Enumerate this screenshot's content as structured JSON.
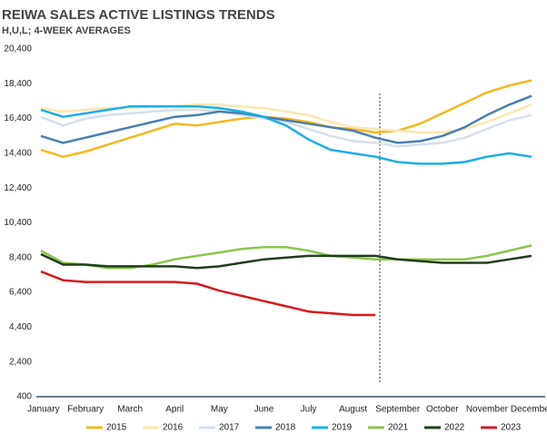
{
  "chart_data": {
    "type": "line",
    "title": "REIWA SALES ACTIVE LISTINGS TRENDS",
    "subtitle": "H,U,L; 4-WEEK AVERAGES",
    "categories": [
      "January",
      null,
      "February",
      null,
      "March",
      null,
      "April",
      null,
      "May",
      null,
      "June",
      null,
      "July",
      null,
      "August",
      null,
      "September",
      null,
      "October",
      null,
      "November",
      null,
      "December"
    ],
    "ylim": [
      400,
      20400
    ],
    "yticks": [
      {
        "value": 400,
        "label": "400"
      },
      {
        "value": 2400,
        "label": "2,400"
      },
      {
        "value": 4400,
        "label": "4,400"
      },
      {
        "value": 6400,
        "label": "6,400"
      },
      {
        "value": 8400,
        "label": "8,400"
      },
      {
        "value": 10400,
        "label": "10,400"
      },
      {
        "value": 12400,
        "label": "12,400"
      },
      {
        "value": 14400,
        "label": "14,400"
      },
      {
        "value": 16400,
        "label": "16,400"
      },
      {
        "value": 18400,
        "label": "18,400"
      },
      {
        "value": 20400,
        "label": "20,400"
      }
    ],
    "series": [
      {
        "name": "2015",
        "color": "#f5b820",
        "values": [
          14600,
          14200,
          14500,
          14900,
          15300,
          15700,
          16100,
          16000,
          16200,
          16400,
          16500,
          16400,
          16200,
          15900,
          15800,
          15600,
          15700,
          16100,
          16700,
          17300,
          17900,
          18300,
          18600
        ]
      },
      {
        "name": "2016",
        "color": "#fbe7b0",
        "values": [
          17000,
          16800,
          16900,
          17000,
          17000,
          17100,
          17100,
          17200,
          17200,
          17100,
          17000,
          16800,
          16600,
          16200,
          15900,
          15800,
          15700,
          15600,
          15600,
          15800,
          16200,
          16700,
          17200
        ]
      },
      {
        "name": "2017",
        "color": "#d6dfec",
        "values": [
          16500,
          16000,
          16400,
          16600,
          16700,
          16800,
          16900,
          16900,
          16800,
          16600,
          16400,
          16200,
          15800,
          15400,
          15100,
          15000,
          14800,
          14900,
          15000,
          15300,
          15800,
          16300,
          16600
        ]
      },
      {
        "name": "2018",
        "color": "#4a7fb0",
        "values": [
          15400,
          15000,
          15300,
          15600,
          15900,
          16200,
          16500,
          16600,
          16800,
          16700,
          16500,
          16300,
          16100,
          15900,
          15700,
          15300,
          15000,
          15100,
          15400,
          15900,
          16600,
          17200,
          17700
        ]
      },
      {
        "name": "2019",
        "color": "#1aaee5",
        "values": [
          16900,
          16500,
          16700,
          16900,
          17100,
          17100,
          17100,
          17100,
          17000,
          16800,
          16500,
          16000,
          15200,
          14600,
          14400,
          14200,
          13900,
          13800,
          13800,
          13900,
          14200,
          14400,
          14200
        ]
      },
      {
        "name": "2021",
        "color": "#8dc44f",
        "values": [
          8800,
          8100,
          8000,
          7800,
          7800,
          8000,
          8300,
          8500,
          8700,
          8900,
          9000,
          9000,
          8800,
          8500,
          8400,
          8300,
          8300,
          8300,
          8300,
          8300,
          8500,
          8800,
          9100
        ]
      },
      {
        "name": "2022",
        "color": "#213d1c",
        "values": [
          8600,
          8000,
          8000,
          7900,
          7900,
          7900,
          7900,
          7800,
          7900,
          8100,
          8300,
          8400,
          8500,
          8500,
          8500,
          8500,
          8300,
          8200,
          8100,
          8100,
          8100,
          8300,
          8500
        ]
      },
      {
        "name": "2023",
        "color": "#d7191c",
        "values": [
          7600,
          7100,
          7000,
          7000,
          7000,
          7000,
          7000,
          6900,
          6500,
          6200,
          5900,
          5600,
          5300,
          5200,
          5100,
          5100,
          null,
          null,
          null,
          null,
          null,
          null,
          null
        ]
      }
    ]
  }
}
